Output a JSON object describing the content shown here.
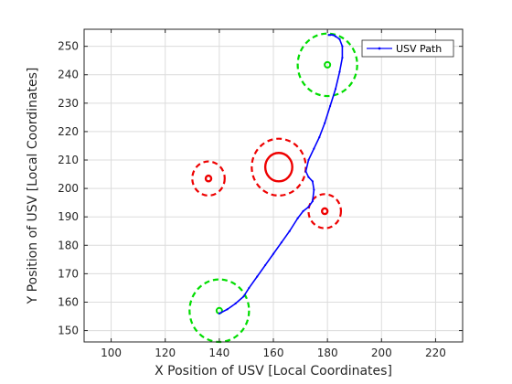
{
  "chart_data": {
    "type": "scatter",
    "title": "",
    "xlabel": "X Position of USV [Local Coordinates]",
    "ylabel": "Y Position of USV [Local Coordinates]",
    "xlim": [
      90,
      230
    ],
    "ylim": [
      146,
      256
    ],
    "xticks": [
      100,
      120,
      140,
      160,
      180,
      200,
      220
    ],
    "yticks": [
      150,
      160,
      170,
      180,
      190,
      200,
      210,
      220,
      230,
      240,
      250
    ],
    "grid": true,
    "legend": {
      "placement": "top-right",
      "entries": [
        "USV Path"
      ]
    },
    "colors": {
      "path": "#0000ff",
      "goal": "#00dd00",
      "obstacle": "#ee0000",
      "grid": "#dcdcdc",
      "axis": "#262626"
    },
    "series": [
      {
        "name": "USV Path",
        "x": [
          140,
          143,
          146,
          149,
          151,
          154,
          157,
          160,
          163,
          166,
          169,
          171,
          173,
          174.5,
          175,
          174.5,
          173,
          172,
          173,
          175,
          177,
          179,
          181,
          183,
          184.5,
          185.5,
          185.5,
          184.5,
          183,
          182,
          181,
          180.5
        ],
        "y": [
          156,
          157.5,
          159.5,
          162,
          165,
          169,
          173,
          177,
          181,
          185,
          189.5,
          192,
          193.5,
          195.5,
          199.5,
          202.5,
          204,
          206,
          210,
          214,
          218,
          223,
          229,
          235,
          241,
          246,
          250,
          252.5,
          253.5,
          254,
          254,
          254
        ]
      }
    ],
    "goals": [
      {
        "x": 140,
        "y": 157,
        "radius": 11
      },
      {
        "x": 180,
        "y": 243.5,
        "radius": 11
      }
    ],
    "obstacles": [
      {
        "x": 136,
        "y": 203.5,
        "radius": 1,
        "safety_radius": 6
      },
      {
        "x": 162,
        "y": 207.5,
        "radius": 5,
        "safety_radius": 10
      },
      {
        "x": 179,
        "y": 192,
        "radius": 1,
        "safety_radius": 6
      }
    ]
  }
}
